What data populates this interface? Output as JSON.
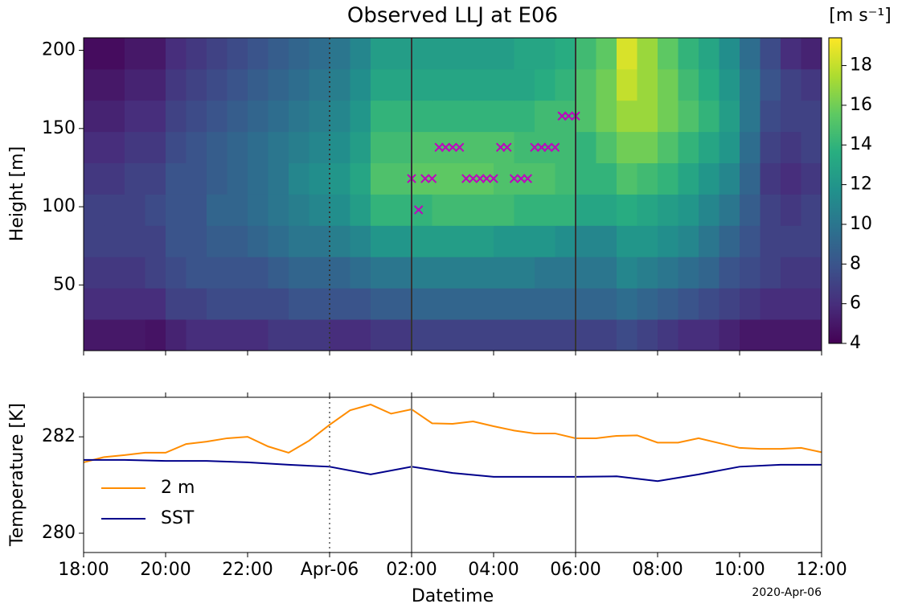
{
  "chart_data": [
    {
      "type": "heatmap",
      "title": "Observed LLJ at E06",
      "ylabel": "Height [m]",
      "x": [
        18,
        18.5,
        19,
        19.5,
        20,
        20.5,
        21,
        21.5,
        22,
        22.5,
        23,
        23.5,
        24,
        24.5,
        25,
        25.5,
        26,
        26.5,
        27,
        27.5,
        28,
        28.5,
        29,
        29.5,
        30,
        30.5,
        31,
        31.5,
        32,
        32.5,
        33,
        33.5,
        34,
        34.5,
        35,
        35.5
      ],
      "heights": [
        18,
        38,
        58,
        78,
        98,
        118,
        138,
        158,
        178,
        198
      ],
      "values": [
        [
          5,
          5,
          5,
          4.8,
          5.5,
          6,
          6,
          6,
          6,
          6.5,
          6.5,
          6.5,
          6,
          6,
          6.5,
          6.5,
          7,
          7,
          7,
          7,
          7,
          7,
          7,
          7,
          7,
          7,
          7.5,
          7,
          6.5,
          6,
          6,
          5.5,
          5,
          5,
          5,
          5
        ],
        [
          6,
          6,
          6,
          6,
          7,
          7,
          7.5,
          7.5,
          7.5,
          7.5,
          8,
          8,
          8,
          8,
          8.5,
          8.5,
          9,
          9,
          9,
          9,
          9,
          9,
          9,
          9,
          9,
          9,
          9.5,
          9,
          8.5,
          8,
          7.5,
          7,
          6.5,
          6,
          6,
          6
        ],
        [
          6.5,
          6.5,
          6.5,
          7,
          7.5,
          8,
          8,
          8,
          8,
          8.5,
          9,
          9,
          9,
          9.5,
          10,
          10,
          10.5,
          10.5,
          10.5,
          10.5,
          10.5,
          10.5,
          10,
          10,
          10,
          10,
          11,
          10.5,
          10,
          9.5,
          9,
          8,
          7.5,
          7,
          6.5,
          6.5
        ],
        [
          7,
          7,
          7,
          7,
          8,
          8,
          8.5,
          8.5,
          9,
          9.5,
          10,
          10,
          10.5,
          11,
          12,
          12,
          12.5,
          12.5,
          12.5,
          12.5,
          12,
          12,
          12,
          11.5,
          11,
          11,
          12,
          12,
          11.5,
          11,
          10,
          9,
          8,
          7,
          7,
          7
        ],
        [
          7,
          7,
          7,
          7.5,
          8,
          8,
          9,
          9,
          9.5,
          10,
          10.5,
          11,
          11.5,
          12.5,
          14,
          14,
          14,
          14.5,
          14.5,
          14.5,
          14.5,
          14,
          14,
          14,
          13,
          13,
          13.5,
          13,
          12.5,
          12,
          11,
          10,
          8.5,
          7,
          6.5,
          7
        ],
        [
          6.5,
          6.5,
          7,
          7,
          8,
          8,
          8.5,
          9,
          9.5,
          10,
          11,
          11.5,
          12,
          13,
          15,
          15,
          15.5,
          15.5,
          15.5,
          15.5,
          15,
          15,
          15,
          14.5,
          14,
          14,
          15,
          14.5,
          14,
          13,
          12,
          11,
          9,
          6.5,
          6,
          6.5
        ],
        [
          6,
          6,
          6.5,
          6.5,
          7.5,
          8,
          8.5,
          9,
          9.5,
          10,
          10.5,
          11,
          11.5,
          12.5,
          14.5,
          14.5,
          15,
          15,
          15,
          15,
          15,
          14.5,
          14.5,
          14.5,
          14,
          15,
          16,
          16,
          15,
          14,
          13,
          12,
          9.5,
          7,
          6.5,
          7
        ],
        [
          5.5,
          5.5,
          6,
          6,
          7,
          7.5,
          8,
          8.5,
          9,
          9.5,
          10,
          10.5,
          11,
          12,
          14,
          14,
          14,
          14,
          14,
          14,
          14,
          14,
          14.5,
          14.5,
          15,
          16,
          17,
          17,
          16,
          15,
          14,
          12.5,
          10,
          7.5,
          7,
          7
        ],
        [
          5,
          5,
          5.5,
          5.5,
          6.5,
          7,
          7.5,
          8,
          8.5,
          9,
          9.5,
          10,
          10.5,
          11.5,
          13,
          13,
          13,
          13,
          13,
          13,
          13,
          13,
          13.5,
          14,
          15,
          16,
          18,
          17,
          16,
          14.5,
          13.5,
          12,
          10,
          8,
          7,
          6.5
        ],
        [
          4.5,
          4.5,
          5,
          5,
          6,
          6.5,
          7,
          7.5,
          8,
          8.5,
          9,
          9.5,
          10,
          11,
          12.5,
          12.5,
          12.5,
          12.5,
          12.5,
          12.5,
          12.5,
          13,
          13,
          13.5,
          14.5,
          15.5,
          18.5,
          17,
          15.5,
          14,
          13,
          11.5,
          9.5,
          7.5,
          6,
          5.5
        ]
      ],
      "colormap": "viridis",
      "clim": [
        4,
        19.4
      ],
      "cticks": [
        4,
        6,
        8,
        10,
        12,
        14,
        16,
        18
      ],
      "colorbar_label": "[m s⁻¹]",
      "xlim": [
        18,
        36
      ],
      "ylim": [
        8,
        208
      ],
      "yticks": [
        50,
        100,
        150,
        200
      ],
      "xticks": [
        18,
        20,
        22,
        24,
        26,
        28,
        30,
        32,
        34,
        36
      ],
      "xtick_labels": false,
      "markers": {
        "symbol": "x",
        "color": "#bf00bf",
        "x": [
          26,
          26.17,
          26.33,
          26.5,
          26.67,
          26.83,
          27,
          27.17,
          27.33,
          27.5,
          27.67,
          27.83,
          28,
          28.17,
          28.33,
          28.5,
          28.67,
          28.83,
          29,
          29.17,
          29.33,
          29.5,
          29.67,
          29.83,
          30
        ],
        "y": [
          118,
          98,
          118,
          118,
          138,
          138,
          138,
          138,
          118,
          118,
          118,
          118,
          118,
          138,
          138,
          118,
          118,
          118,
          138,
          138,
          138,
          138,
          158,
          158,
          158
        ]
      },
      "vlines": [
        {
          "x": 24,
          "style": "dotted"
        },
        {
          "x": 26,
          "style": "solid"
        },
        {
          "x": 30,
          "style": "solid"
        }
      ],
      "vline_color": "#333333"
    },
    {
      "type": "line",
      "ylabel": "Temperature [K]",
      "xlabel": "Datetime",
      "offset_text": "2020-Apr-06",
      "series": [
        {
          "name": "2 m",
          "color": "#ff8c00",
          "x": [
            18,
            18.5,
            19,
            19.5,
            20,
            20.5,
            21,
            21.5,
            22,
            22.5,
            23,
            23.5,
            24,
            24.5,
            25,
            25.5,
            26,
            26.5,
            27,
            27.5,
            28,
            28.5,
            29,
            29.5,
            30,
            30.5,
            31,
            31.5,
            32,
            32.5,
            33,
            33.5,
            34,
            34.5,
            35,
            35.5,
            36
          ],
          "values": [
            281.47,
            281.58,
            281.62,
            281.67,
            281.67,
            281.85,
            281.9,
            281.97,
            282.0,
            281.8,
            281.67,
            281.92,
            282.25,
            282.55,
            282.67,
            282.48,
            282.57,
            282.28,
            282.27,
            282.32,
            282.22,
            282.13,
            282.07,
            282.07,
            281.97,
            281.97,
            282.02,
            282.03,
            281.88,
            281.88,
            281.97,
            281.87,
            281.77,
            281.75,
            281.75,
            281.77,
            281.68
          ]
        },
        {
          "name": "SST",
          "color": "#00008b",
          "x": [
            18,
            19,
            20,
            21,
            22,
            23,
            24,
            25,
            26,
            27,
            28,
            29,
            30,
            31,
            32,
            33,
            34,
            35,
            36
          ],
          "values": [
            281.52,
            281.52,
            281.5,
            281.5,
            281.47,
            281.42,
            281.38,
            281.22,
            281.38,
            281.25,
            281.17,
            281.17,
            281.17,
            281.18,
            281.08,
            281.22,
            281.38,
            281.42,
            281.42
          ]
        }
      ],
      "xlim": [
        18,
        36
      ],
      "ylim": [
        279.6,
        282.82
      ],
      "yticks": [
        280,
        282
      ],
      "xticks": [
        {
          "value": 18,
          "label": "18:00"
        },
        {
          "value": 20,
          "label": "20:00"
        },
        {
          "value": 22,
          "label": "22:00"
        },
        {
          "value": 24,
          "label": "Apr-06"
        },
        {
          "value": 26,
          "label": "02:00"
        },
        {
          "value": 28,
          "label": "04:00"
        },
        {
          "value": 30,
          "label": "06:00"
        },
        {
          "value": 32,
          "label": "08:00"
        },
        {
          "value": 34,
          "label": "10:00"
        },
        {
          "value": 36,
          "label": "12:00"
        }
      ],
      "top_ticks": true,
      "legend": "lower left",
      "vlines": [
        {
          "x": 24,
          "style": "dotted"
        },
        {
          "x": 26,
          "style": "solid"
        },
        {
          "x": 30,
          "style": "solid"
        }
      ],
      "vline_color": "#808080"
    }
  ]
}
